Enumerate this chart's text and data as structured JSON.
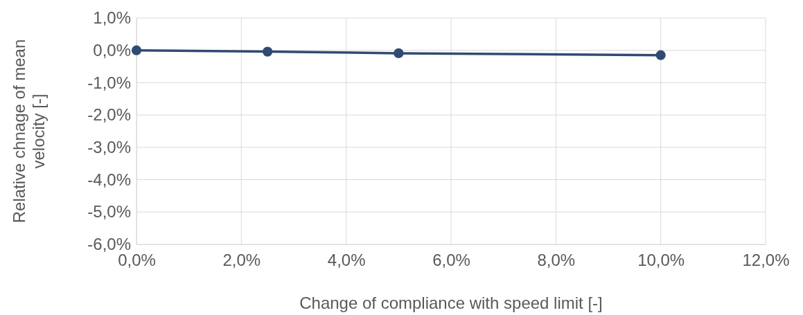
{
  "chart_data": {
    "type": "line",
    "xlabel": "Change of compliance with speed limit [-]",
    "ylabel": "Relative chnage of mean velocity [-]",
    "x": [
      0,
      2.5,
      5,
      10
    ],
    "series": [
      {
        "color": "#2f4b73",
        "values": [
          0,
          -0.04,
          -0.09,
          -0.15
        ]
      }
    ],
    "xlim": [
      0,
      12
    ],
    "ylim": [
      -6,
      1
    ],
    "xticks": [
      {
        "value": 0,
        "label": "0,0%"
      },
      {
        "value": 2,
        "label": "2,0%"
      },
      {
        "value": 4,
        "label": "4,0%"
      },
      {
        "value": 6,
        "label": "6,0%"
      },
      {
        "value": 8,
        "label": "8,0%"
      },
      {
        "value": 10,
        "label": "10,0%"
      },
      {
        "value": 12,
        "label": "12,0%"
      }
    ],
    "yticks": [
      {
        "value": 1,
        "label": "1,0%"
      },
      {
        "value": 0,
        "label": "0,0%"
      },
      {
        "value": -1,
        "label": "-1,0%"
      },
      {
        "value": -2,
        "label": "-2,0%"
      },
      {
        "value": -3,
        "label": "-3,0%"
      },
      {
        "value": -4,
        "label": "-4,0%"
      },
      {
        "value": -5,
        "label": "-5,0%"
      },
      {
        "value": -6,
        "label": "-6,0%"
      }
    ],
    "grid": true,
    "marker": "circle",
    "line_style": "solid"
  }
}
